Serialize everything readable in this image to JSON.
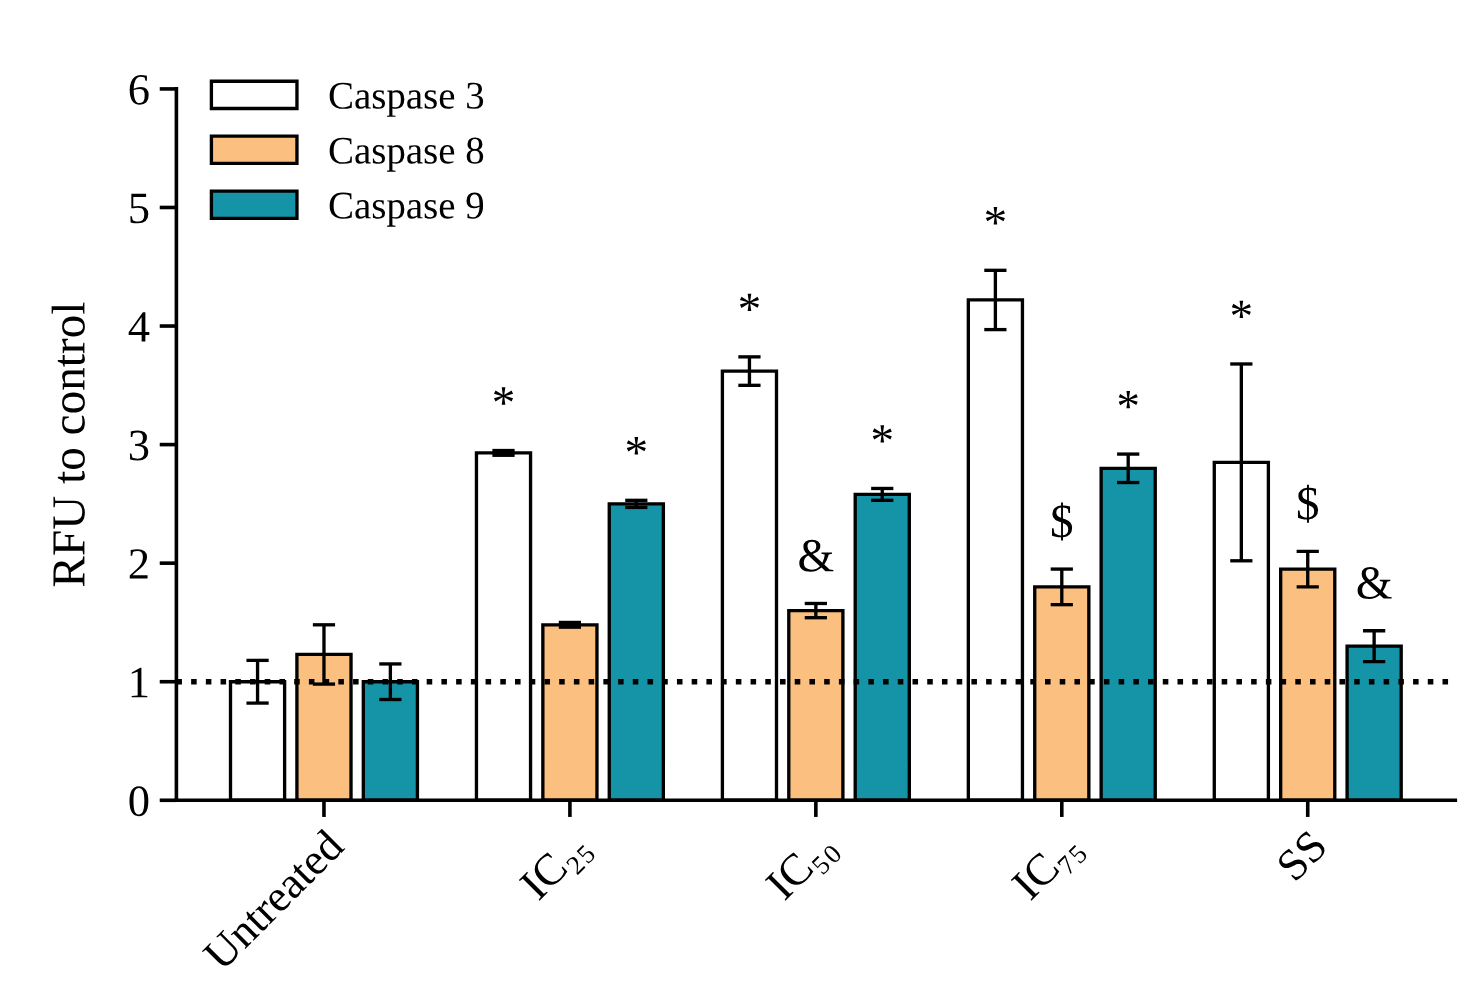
{
  "chart_data": {
    "type": "bar",
    "ylabel": "RFU to control",
    "categories": [
      "Untreated",
      "IC₂₅",
      "IC₅₀",
      "IC₇₅",
      "SS"
    ],
    "series": [
      {
        "name": "Caspase 3",
        "color": "#ffffff",
        "values": [
          1.0,
          2.93,
          3.62,
          4.22,
          2.85
        ],
        "errors": [
          0.18,
          0.02,
          0.12,
          0.25,
          0.83
        ],
        "value_labels": [
          null,
          "*",
          "*",
          "*",
          "*"
        ]
      },
      {
        "name": "Caspase 8",
        "color": "#fbbf7f",
        "values": [
          1.23,
          1.48,
          1.6,
          1.8,
          1.95
        ],
        "errors": [
          0.25,
          0.02,
          0.06,
          0.15,
          0.15
        ],
        "value_labels": [
          null,
          null,
          "&",
          "$",
          "$"
        ]
      },
      {
        "name": "Caspase 9",
        "color": "#1594a8",
        "values": [
          1.0,
          2.5,
          2.58,
          2.8,
          1.3
        ],
        "errors": [
          0.15,
          0.03,
          0.05,
          0.12,
          0.13
        ],
        "value_labels": [
          null,
          "*",
          "*",
          "*",
          "&"
        ]
      }
    ],
    "ylim": [
      0,
      6
    ],
    "yticks": [
      0,
      1,
      2,
      3,
      4,
      5,
      6
    ],
    "ref_lines": [
      {
        "axis": "y",
        "value": 1,
        "line_style": "dotted",
        "color": "#000000"
      }
    ],
    "legend": "top left",
    "grid": false
  }
}
